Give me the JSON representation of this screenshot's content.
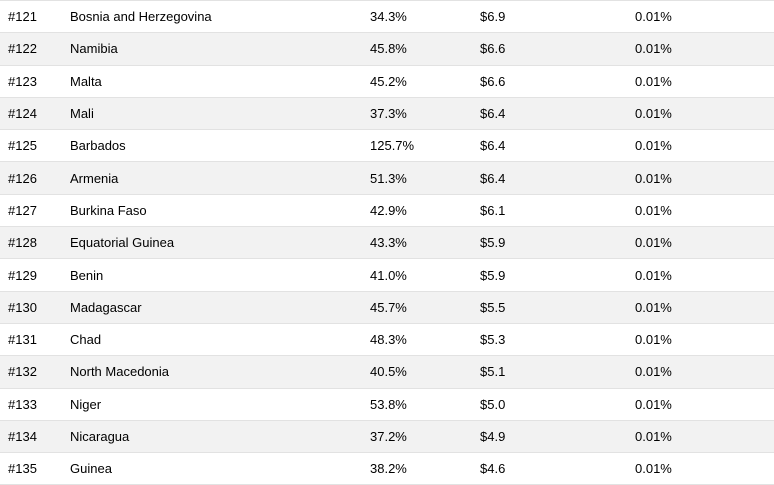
{
  "chart_data": {
    "type": "table",
    "rows": [
      {
        "rank": "#121",
        "country": "Bosnia and Herzegovina",
        "pct": "34.3%",
        "usd": "$6.9",
        "share": "0.01%"
      },
      {
        "rank": "#122",
        "country": "Namibia",
        "pct": "45.8%",
        "usd": "$6.6",
        "share": "0.01%"
      },
      {
        "rank": "#123",
        "country": "Malta",
        "pct": "45.2%",
        "usd": "$6.6",
        "share": "0.01%"
      },
      {
        "rank": "#124",
        "country": "Mali",
        "pct": "37.3%",
        "usd": "$6.4",
        "share": "0.01%"
      },
      {
        "rank": "#125",
        "country": "Barbados",
        "pct": "125.7%",
        "usd": "$6.4",
        "share": "0.01%"
      },
      {
        "rank": "#126",
        "country": "Armenia",
        "pct": "51.3%",
        "usd": "$6.4",
        "share": "0.01%"
      },
      {
        "rank": "#127",
        "country": "Burkina Faso",
        "pct": "42.9%",
        "usd": "$6.1",
        "share": "0.01%"
      },
      {
        "rank": "#128",
        "country": "Equatorial Guinea",
        "pct": "43.3%",
        "usd": "$5.9",
        "share": "0.01%"
      },
      {
        "rank": "#129",
        "country": "Benin",
        "pct": "41.0%",
        "usd": "$5.9",
        "share": "0.01%"
      },
      {
        "rank": "#130",
        "country": "Madagascar",
        "pct": "45.7%",
        "usd": "$5.5",
        "share": "0.01%"
      },
      {
        "rank": "#131",
        "country": "Chad",
        "pct": "48.3%",
        "usd": "$5.3",
        "share": "0.01%"
      },
      {
        "rank": "#132",
        "country": "North Macedonia",
        "pct": "40.5%",
        "usd": "$5.1",
        "share": "0.01%"
      },
      {
        "rank": "#133",
        "country": "Niger",
        "pct": "53.8%",
        "usd": "$5.0",
        "share": "0.01%"
      },
      {
        "rank": "#134",
        "country": "Nicaragua",
        "pct": "37.2%",
        "usd": "$4.9",
        "share": "0.01%"
      },
      {
        "rank": "#135",
        "country": "Guinea",
        "pct": "38.2%",
        "usd": "$4.6",
        "share": "0.01%"
      }
    ]
  },
  "colors": {
    "row_bg": "#ffffff",
    "row_alt_bg": "#f2f2f2",
    "border": "#e2e2e2",
    "text": "#000000"
  }
}
